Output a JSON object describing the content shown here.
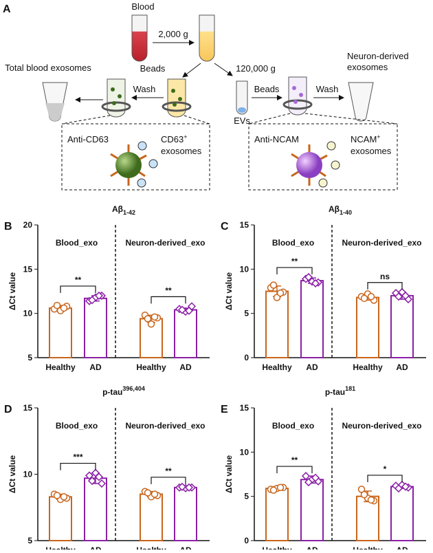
{
  "diagram": {
    "panel": "A",
    "blood": "Blood",
    "speed1": "2,000 g",
    "beads_left": "Beads",
    "speed2": "120,000 g",
    "total": "Total blood exosomes",
    "wash_left": "Wash",
    "evs": "EVs",
    "beads_right": "Beads",
    "wash_right": "Wash",
    "neuron_line1": "Neuron-derived",
    "neuron_line2": "exosomes",
    "anti_cd63": "Anti-CD63",
    "cd63": {
      "text": "CD63",
      "sup": "+",
      "line2": "exosomes"
    },
    "anti_ncam": "Anti-NCAM",
    "ncam": {
      "text": "NCAM",
      "sup": "+",
      "line2": "exosomes"
    }
  },
  "chart_data": [
    {
      "type": "bar",
      "panel": "B",
      "title": "Aβ",
      "title_subscript": "1-42",
      "y_label": "ΔCt value",
      "categories": [
        "Healthy",
        "AD",
        "Healthy",
        "AD"
      ],
      "groups": [
        "Blood_exo",
        "Neuron-derived_exo"
      ],
      "values": [
        10.6,
        11.7,
        9.4,
        10.4
      ],
      "errors": [
        0.3,
        0.3,
        0.4,
        0.2
      ],
      "points": [
        [
          10.5,
          10.8,
          10.3,
          10.9,
          10.6
        ],
        [
          11.4,
          12.0,
          11.8,
          11.5,
          12.0
        ],
        [
          9.8,
          9.5,
          8.8,
          9.4,
          9.6
        ],
        [
          10.5,
          10.8,
          10.2,
          10.4,
          10.3
        ]
      ],
      "significance": [
        "**",
        "**"
      ],
      "colors": [
        "#c8651b",
        "#8a1fa6",
        "#c8651b",
        "#8a1fa6"
      ],
      "markers": [
        "circle",
        "diamond",
        "circle",
        "diamond"
      ],
      "ylim": [
        5,
        20
      ],
      "yticks": [
        5,
        10,
        15,
        20
      ]
    },
    {
      "type": "bar",
      "panel": "C",
      "title": "Aβ",
      "title_subscript": "1-40",
      "y_label": "ΔCt value",
      "categories": [
        "Healthy",
        "AD",
        "Healthy",
        "AD"
      ],
      "groups": [
        "Blood_exo",
        "Neuron-derived_exo"
      ],
      "values": [
        7.5,
        8.7,
        6.8,
        7.0
      ],
      "errors": [
        0.6,
        0.3,
        0.3,
        0.4
      ],
      "points": [
        [
          7.9,
          7.4,
          6.8,
          8.2,
          7.3
        ],
        [
          8.9,
          8.5,
          8.6,
          9.1,
          8.4
        ],
        [
          6.9,
          6.5,
          7.2,
          6.7,
          6.9
        ],
        [
          7.3,
          6.6,
          7.4,
          6.9,
          7.0
        ]
      ],
      "significance": [
        "**",
        "ns"
      ],
      "colors": [
        "#c8651b",
        "#8a1fa6",
        "#c8651b",
        "#8a1fa6"
      ],
      "markers": [
        "circle",
        "diamond",
        "circle",
        "diamond"
      ],
      "ylim": [
        0,
        15
      ],
      "yticks": [
        0,
        5,
        10,
        15
      ]
    },
    {
      "type": "bar",
      "panel": "D",
      "title": "p-tau",
      "title_superscript": "396,404",
      "y_label": "ΔCt value",
      "categories": [
        "Healthy",
        "AD",
        "Healthy",
        "AD"
      ],
      "groups": [
        "Blood_exo",
        "Neuron-derived_exo"
      ],
      "values": [
        8.3,
        9.7,
        8.5,
        9.0
      ],
      "errors": [
        0.2,
        0.4,
        0.2,
        0.05
      ],
      "points": [
        [
          8.5,
          8.2,
          8.1,
          8.4,
          8.3
        ],
        [
          9.9,
          9.3,
          10.1,
          9.5,
          9.8
        ],
        [
          8.7,
          8.4,
          8.3,
          8.6,
          8.5
        ],
        [
          9.0,
          9.0,
          8.95,
          9.05,
          9.0
        ]
      ],
      "significance": [
        "***",
        "**"
      ],
      "colors": [
        "#c8651b",
        "#8a1fa6",
        "#c8651b",
        "#8a1fa6"
      ],
      "markers": [
        "circle",
        "diamond",
        "circle",
        "diamond"
      ],
      "ylim": [
        5,
        15
      ],
      "yticks": [
        5,
        10,
        15
      ]
    },
    {
      "type": "bar",
      "panel": "E",
      "title": "p-tau",
      "title_superscript": "181",
      "y_label": "ΔCt value",
      "categories": [
        "Healthy",
        "AD",
        "Healthy",
        "AD"
      ],
      "groups": [
        "Blood_exo",
        "Neuron-derived_exo"
      ],
      "values": [
        5.9,
        6.9,
        5.0,
        6.1
      ],
      "errors": [
        0.2,
        0.4,
        0.6,
        0.2
      ],
      "points": [
        [
          5.8,
          6.0,
          5.9,
          5.7,
          6.0
        ],
        [
          7.3,
          6.7,
          6.9,
          6.6,
          7.1
        ],
        [
          5.8,
          4.5,
          4.8,
          5.2,
          4.6
        ],
        [
          6.2,
          6.0,
          6.3,
          5.9,
          6.1
        ]
      ],
      "significance": [
        "**",
        "*"
      ],
      "colors": [
        "#c8651b",
        "#8a1fa6",
        "#c8651b",
        "#8a1fa6"
      ],
      "markers": [
        "circle",
        "diamond",
        "circle",
        "diamond"
      ],
      "ylim": [
        0,
        15
      ],
      "yticks": [
        0,
        5,
        10,
        15
      ]
    }
  ]
}
